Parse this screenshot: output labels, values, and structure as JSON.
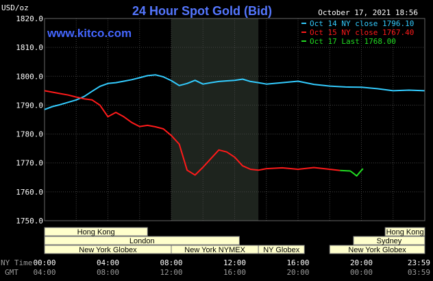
{
  "chart_data": {
    "type": "line",
    "title": "24 Hour Spot Gold (Bid)",
    "site": "www.kitco.com",
    "timestamp": "October 17, 2021 18:56",
    "ylabel": "USD/oz",
    "ylim": [
      1750,
      1820
    ],
    "yticks": [
      "1820.0",
      "1810.0",
      "1800.0",
      "1790.0",
      "1780.0",
      "1770.0",
      "1760.0",
      "1750.0"
    ],
    "xlim": [
      0,
      24
    ],
    "grid": true,
    "legend_position": "top-right",
    "x_axis_label_ny": "NY Time",
    "x_axis_label_gmt": "GMT",
    "x_ticks_ny": [
      "00:00",
      "04:00",
      "08:00",
      "12:00",
      "16:00",
      "20:00",
      "23:59"
    ],
    "x_ticks_gmt": [
      "04:00",
      "08:00",
      "12:00",
      "16:00",
      "20:00",
      "00:00",
      "03:59"
    ],
    "highlight_hours": [
      8,
      13.5
    ],
    "series": [
      {
        "name": "Oct 14 NY close 1796.10",
        "color": "#33ccff",
        "x": [
          0,
          0.5,
          1,
          1.5,
          2,
          2.5,
          3,
          3.5,
          4,
          4.5,
          5,
          5.5,
          6,
          6.5,
          7,
          7.5,
          8,
          8.5,
          9,
          9.5,
          10,
          10.5,
          11,
          11.5,
          12,
          12.5,
          13,
          13.5,
          14,
          15,
          16,
          17,
          18,
          19,
          20,
          21,
          22,
          23,
          23.98
        ],
        "y": [
          1788.5,
          1789.5,
          1790.2,
          1791.0,
          1791.8,
          1793.0,
          1794.8,
          1796.5,
          1797.5,
          1797.8,
          1798.3,
          1798.8,
          1799.5,
          1800.2,
          1800.5,
          1799.8,
          1798.5,
          1796.8,
          1797.5,
          1798.6,
          1797.3,
          1797.8,
          1798.2,
          1798.4,
          1798.6,
          1799.0,
          1798.2,
          1797.8,
          1797.3,
          1797.8,
          1798.3,
          1797.2,
          1796.6,
          1796.3,
          1796.2,
          1795.7,
          1795.0,
          1795.2,
          1795.0
        ]
      },
      {
        "name": "Oct 15 NY close 1767.40",
        "color": "#ff1a1a",
        "x": [
          0,
          0.5,
          1,
          1.5,
          2,
          2.5,
          3,
          3.5,
          4,
          4.5,
          5,
          5.5,
          6,
          6.5,
          7,
          7.5,
          8,
          8.5,
          9,
          9.5,
          10,
          10.5,
          11,
          11.5,
          12,
          12.5,
          13,
          13.5,
          14,
          15,
          16,
          17,
          18,
          18.65
        ],
        "y": [
          1795.0,
          1794.5,
          1794.0,
          1793.5,
          1792.8,
          1792.2,
          1791.8,
          1790.0,
          1786.0,
          1787.5,
          1786.0,
          1784.0,
          1782.6,
          1783.0,
          1782.5,
          1781.8,
          1779.5,
          1776.5,
          1767.5,
          1765.8,
          1768.5,
          1771.5,
          1774.5,
          1773.8,
          1772.0,
          1769.0,
          1767.8,
          1767.5,
          1768.0,
          1768.3,
          1767.8,
          1768.4,
          1767.8,
          1767.4
        ]
      },
      {
        "name": "Oct 17 Last 1768.00",
        "color": "#22dd22",
        "x": [
          18.65,
          19.0,
          19.3,
          19.5,
          19.7,
          19.9,
          20.1
        ],
        "y": [
          1767.4,
          1767.3,
          1767.2,
          1766.4,
          1765.5,
          1766.8,
          1768.0
        ]
      }
    ],
    "sessions": [
      {
        "label": "Hong Kong",
        "row": 0,
        "start": 0,
        "end": 6.5
      },
      {
        "label": "Hong Kong",
        "row": 0,
        "start": 21.5,
        "end": 24
      },
      {
        "label": "London",
        "row": 1,
        "start": 0,
        "end": 12.3
      },
      {
        "label": "Sydney",
        "row": 1,
        "start": 19.5,
        "end": 24
      },
      {
        "label": "New York Globex",
        "row": 2,
        "start": 0,
        "end": 8
      },
      {
        "label": "New York NYMEX",
        "row": 2,
        "start": 8,
        "end": 13.5
      },
      {
        "label": "NY Globex",
        "row": 2,
        "start": 13.5,
        "end": 16.4
      },
      {
        "label": "New York Globex",
        "row": 2,
        "start": 18.0,
        "end": 24
      }
    ]
  }
}
